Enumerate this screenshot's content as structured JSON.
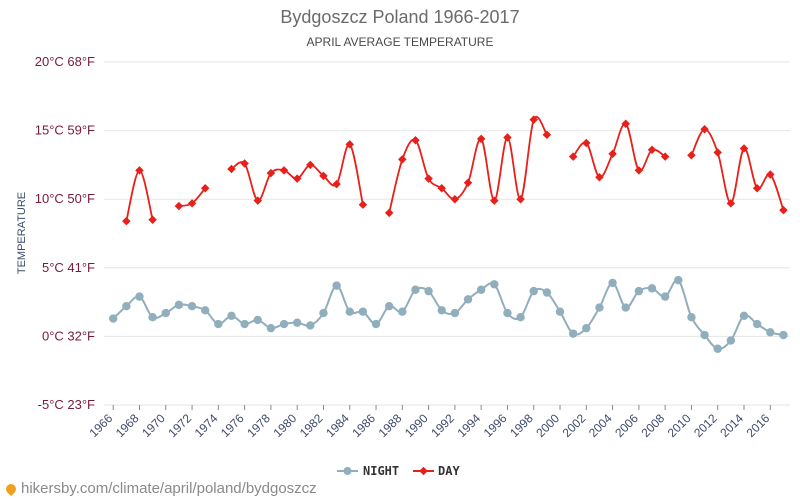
{
  "chart_data": {
    "type": "line",
    "title": "Bydgoszcz Poland 1966-2017",
    "subtitle": "APRIL AVERAGE TEMPERATURE",
    "ylabel": "TEMPERATURE",
    "ylim": [
      -5,
      20
    ],
    "xlim": [
      1966,
      2017
    ],
    "yticks": [
      "-5°C 23°F",
      "0°C 32°F",
      "5°C 41°F",
      "10°C 50°F",
      "15°C 59°F",
      "20°C 68°F"
    ],
    "ytick_values": [
      -5,
      0,
      5,
      10,
      15,
      20
    ],
    "xticks": [
      1966,
      1968,
      1970,
      1972,
      1974,
      1976,
      1978,
      1980,
      1982,
      1984,
      1986,
      1988,
      1990,
      1992,
      1994,
      1996,
      1998,
      2000,
      2002,
      2004,
      2006,
      2008,
      2010,
      2012,
      2014,
      2016
    ],
    "grid": true,
    "legend_position": "bottom",
    "series": [
      {
        "name": "NIGHT",
        "color": "#90aebb",
        "x": [
          1966,
          1967,
          1968,
          1969,
          1970,
          1971,
          1972,
          1973,
          1974,
          1975,
          1976,
          1977,
          1978,
          1979,
          1980,
          1981,
          1982,
          1983,
          1984,
          1985,
          1986,
          1987,
          1988,
          1989,
          1990,
          1991,
          1992,
          1993,
          1994,
          1995,
          1996,
          1997,
          1998,
          1999,
          2000,
          2001,
          2002,
          2003,
          2004,
          2005,
          2006,
          2007,
          2008,
          2009,
          2010,
          2011,
          2012,
          2013,
          2014,
          2015,
          2016,
          2017
        ],
        "values": [
          1.3,
          2.2,
          2.9,
          1.4,
          1.7,
          2.3,
          2.2,
          1.9,
          0.9,
          1.5,
          0.9,
          1.2,
          0.6,
          0.9,
          1.0,
          0.8,
          1.7,
          3.7,
          1.8,
          1.8,
          0.9,
          2.2,
          1.8,
          3.4,
          3.3,
          1.9,
          1.7,
          2.7,
          3.4,
          3.8,
          1.7,
          1.4,
          3.3,
          3.2,
          1.8,
          0.2,
          0.6,
          2.1,
          3.9,
          2.1,
          3.3,
          3.5,
          2.9,
          4.1,
          1.4,
          0.1,
          -0.9,
          -0.3,
          1.5,
          0.9,
          0.3,
          0.1
        ]
      },
      {
        "name": "DAY",
        "color": "#e8201a",
        "x": [
          1966,
          1967,
          1968,
          1969,
          1970,
          1971,
          1972,
          1973,
          1974,
          1975,
          1976,
          1977,
          1978,
          1979,
          1980,
          1981,
          1982,
          1983,
          1984,
          1985,
          1986,
          1987,
          1988,
          1989,
          1990,
          1991,
          1992,
          1993,
          1994,
          1995,
          1996,
          1997,
          1998,
          1999,
          2000,
          2001,
          2002,
          2003,
          2004,
          2005,
          2006,
          2007,
          2008,
          2009,
          2010,
          2011,
          2012,
          2013,
          2014,
          2015,
          2016,
          2017
        ],
        "values": [
          null,
          8.4,
          12.1,
          8.5,
          null,
          9.5,
          9.7,
          10.8,
          null,
          12.2,
          12.6,
          9.9,
          11.9,
          12.1,
          11.5,
          12.5,
          11.7,
          11.1,
          14.0,
          9.6,
          null,
          9.0,
          12.9,
          14.3,
          11.5,
          10.8,
          10.0,
          11.2,
          14.4,
          9.9,
          14.5,
          10.0,
          15.8,
          14.7,
          null,
          13.1,
          14.1,
          11.6,
          13.3,
          15.5,
          12.1,
          13.6,
          13.1,
          null,
          13.2,
          15.1,
          13.4,
          9.7,
          13.7,
          10.8,
          11.8,
          9.2
        ]
      }
    ]
  },
  "footer": {
    "text": "hikersby.com/climate/april/poland/bydgoszcz"
  }
}
